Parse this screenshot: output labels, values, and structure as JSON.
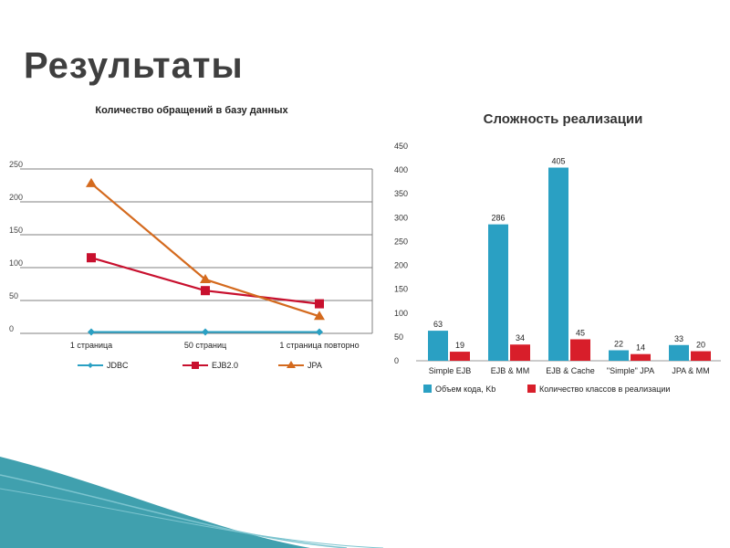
{
  "slide": {
    "title": "Результаты"
  },
  "colors": {
    "jdbc": "#2aa0c3",
    "ejb": "#c8102e",
    "jpa": "#d46a1e",
    "bar_blue": "#2aa0c3",
    "bar_red": "#d81e2a",
    "accent_teal": "#1f8fa0"
  },
  "chart_data": [
    {
      "type": "line",
      "title": "Количество обращений в базу данных",
      "categories": [
        "1 страница",
        "50 страниц",
        "1 страница повторно"
      ],
      "series": [
        {
          "name": "JDBC",
          "values": [
            2,
            2,
            2
          ]
        },
        {
          "name": "EJB2.0",
          "values": [
            115,
            65,
            45
          ]
        },
        {
          "name": "JPA",
          "values": [
            228,
            82,
            26
          ]
        }
      ],
      "ylim": [
        0,
        250
      ],
      "yticks": [
        "0",
        "50",
        "100",
        "150",
        "200",
        "250"
      ],
      "grid": true,
      "legend": "bottom"
    },
    {
      "type": "bar",
      "title": "Сложность реализации",
      "categories": [
        "Simple EJB",
        "EJB & MM",
        "EJB & Cache",
        "\"Simple\" JPA",
        "JPA & MM"
      ],
      "series": [
        {
          "name": "Объем кода, Kb",
          "values": [
            63,
            286,
            405,
            22,
            33
          ]
        },
        {
          "name": "Количество классов в реализации",
          "values": [
            19,
            34,
            45,
            14,
            20
          ]
        }
      ],
      "ylim": [
        0,
        450
      ],
      "yticks": [
        "0",
        "50",
        "100",
        "150",
        "200",
        "250",
        "300",
        "350",
        "400",
        "450"
      ],
      "grid": false,
      "legend": "bottom"
    }
  ]
}
